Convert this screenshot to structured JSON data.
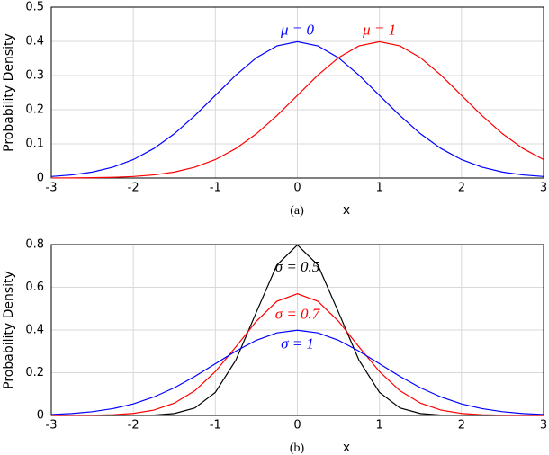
{
  "chart_data": [
    {
      "type": "line",
      "caption": "(a)",
      "x_label": "x",
      "y_label": "Probability Density",
      "x": [
        -3,
        -2.75,
        -2.5,
        -2.25,
        -2,
        -1.75,
        -1.5,
        -1.25,
        -1,
        -0.75,
        -0.5,
        -0.25,
        0,
        0.25,
        0.5,
        0.75,
        1,
        1.25,
        1.5,
        1.75,
        2,
        2.25,
        2.5,
        2.75,
        3
      ],
      "series": [
        {
          "name": "μ = 0",
          "color": "#0000ff",
          "values": [
            0.0044,
            0.0091,
            0.0175,
            0.0317,
            0.054,
            0.0863,
            0.1295,
            0.1826,
            0.242,
            0.3011,
            0.3521,
            0.3867,
            0.3989,
            0.3867,
            0.3521,
            0.3011,
            0.242,
            0.1826,
            0.1295,
            0.0863,
            0.054,
            0.0317,
            0.0175,
            0.0091,
            0.0044
          ]
        },
        {
          "name": "μ = 1",
          "color": "#ff0000",
          "values": [
            0.0001,
            0.0004,
            0.0009,
            0.002,
            0.0044,
            0.0091,
            0.0175,
            0.0317,
            0.054,
            0.0863,
            0.1295,
            0.1826,
            0.242,
            0.3011,
            0.3521,
            0.3867,
            0.3989,
            0.3867,
            0.3521,
            0.3011,
            0.242,
            0.1826,
            0.1295,
            0.0863,
            0.054
          ]
        }
      ],
      "annotations": [
        {
          "text": "μ = 0",
          "x": 0,
          "y": 0.43,
          "color": "#0000ff"
        },
        {
          "text": "μ = 1",
          "x": 1,
          "y": 0.43,
          "color": "#ff0000"
        }
      ],
      "xlim": [
        -3,
        3
      ],
      "xticks": [
        -3,
        -2,
        -1,
        0,
        1,
        2,
        3
      ],
      "ylim": [
        0,
        0.5
      ],
      "yticks": [
        0,
        0.1,
        0.2,
        0.3,
        0.4,
        0.5
      ],
      "grid": true
    },
    {
      "type": "line",
      "caption": "(b)",
      "x_label": "x",
      "y_label": "Probability Density",
      "x": [
        -3,
        -2.75,
        -2.5,
        -2.25,
        -2,
        -1.75,
        -1.5,
        -1.25,
        -1,
        -0.75,
        -0.5,
        -0.25,
        0,
        0.25,
        0.5,
        0.75,
        1,
        1.25,
        1.5,
        1.75,
        2,
        2.25,
        2.5,
        2.75,
        3
      ],
      "series": [
        {
          "name": "σ = 0.5",
          "color": "#000000",
          "values": [
            0,
            0,
            0,
            0,
            0.0003,
            0.0017,
            0.0089,
            0.035,
            0.108,
            0.259,
            0.4839,
            0.7041,
            0.7979,
            0.7041,
            0.4839,
            0.259,
            0.108,
            0.035,
            0.0089,
            0.0017,
            0.0003,
            0,
            0,
            0,
            0
          ]
        },
        {
          "name": "σ = 0.7",
          "color": "#ff0000",
          "values": [
            0.0001,
            0.0003,
            0.001,
            0.0033,
            0.0096,
            0.025,
            0.0574,
            0.1157,
            0.2054,
            0.321,
            0.4415,
            0.5347,
            0.5699,
            0.5347,
            0.4415,
            0.321,
            0.2054,
            0.1157,
            0.0574,
            0.025,
            0.0096,
            0.0033,
            0.001,
            0.0003,
            0.0001
          ]
        },
        {
          "name": "σ = 1",
          "color": "#0000ff",
          "values": [
            0.0044,
            0.0091,
            0.0175,
            0.0317,
            0.054,
            0.0863,
            0.1295,
            0.1826,
            0.242,
            0.3011,
            0.3521,
            0.3867,
            0.3989,
            0.3867,
            0.3521,
            0.3011,
            0.242,
            0.1826,
            0.1295,
            0.0863,
            0.054,
            0.0317,
            0.0175,
            0.0091,
            0.0044
          ]
        }
      ],
      "annotations": [
        {
          "text": "σ = 0.5",
          "x": 0,
          "y": 0.69,
          "color": "#000000"
        },
        {
          "text": "σ = 0.7",
          "x": 0,
          "y": 0.47,
          "color": "#ff0000"
        },
        {
          "text": "σ = 1",
          "x": 0,
          "y": 0.33,
          "color": "#0000ff"
        }
      ],
      "xlim": [
        -3,
        3
      ],
      "xticks": [
        -3,
        -2,
        -1,
        0,
        1,
        2,
        3
      ],
      "ylim": [
        0,
        0.8
      ],
      "yticks": [
        0,
        0.2,
        0.4,
        0.6,
        0.8
      ],
      "grid": true
    }
  ]
}
